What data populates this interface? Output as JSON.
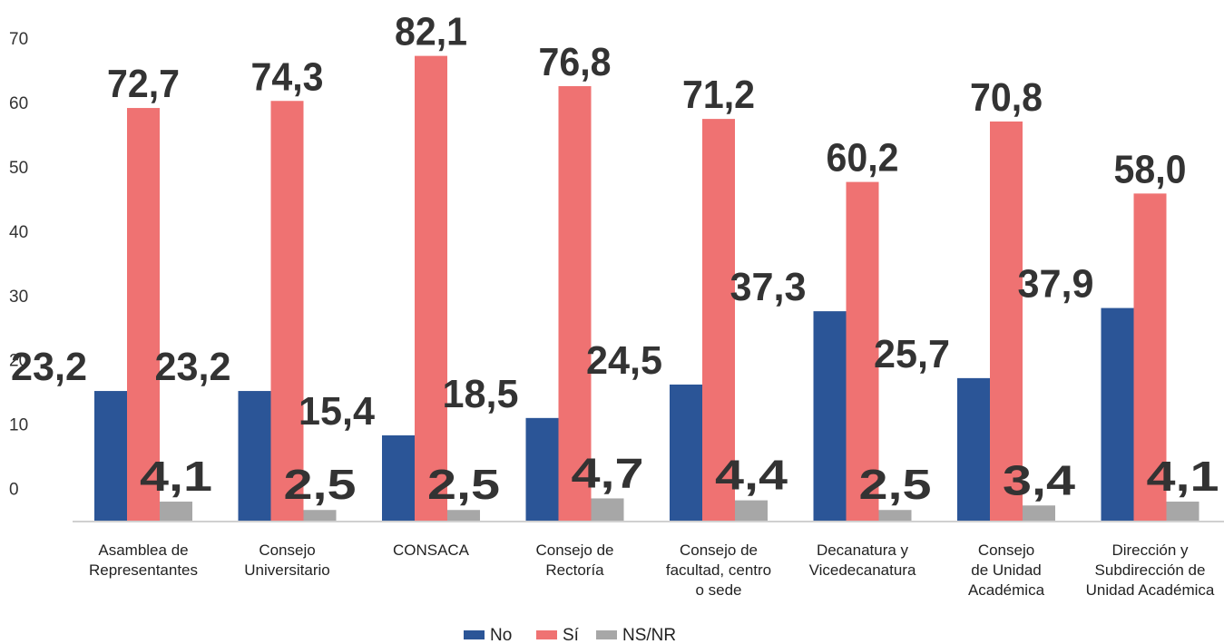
{
  "chart_data": {
    "type": "bar",
    "title": "",
    "xlabel": "",
    "ylabel": "",
    "ylim": [
      -5,
      72
    ],
    "yticks": [
      0,
      10,
      20,
      30,
      40,
      50,
      60,
      70
    ],
    "grid": false,
    "legend_position": "bottom-center",
    "categories": [
      [
        "Asamblea de",
        "Representantes"
      ],
      [
        "Consejo",
        "Universitario"
      ],
      [
        "CONSACA"
      ],
      [
        "Consejo de",
        "Rectoría"
      ],
      [
        "Consejo de",
        "facultad, centro",
        "o sede"
      ],
      [
        "Decanatura y",
        "Vicedecanatura"
      ],
      [
        "Consejo",
        "de Unidad",
        "Académica"
      ],
      [
        "Dirección y",
        "Subdirección de",
        "Unidad Académica"
      ]
    ],
    "series": [
      {
        "name": "No",
        "color": "#2b5597",
        "values": [
          15.3,
          15.3,
          8.4,
          11.1,
          16.3,
          27.7,
          17.3,
          28.2
        ],
        "labels": [
          "23,2",
          "23,2",
          "15,4",
          "18,5",
          "24,5",
          "37,3",
          "25,7",
          "37,9"
        ]
      },
      {
        "name": "Sí",
        "color": "#ef7272",
        "values": [
          59.3,
          60.4,
          67.4,
          62.7,
          57.6,
          47.8,
          57.2,
          46.0
        ],
        "labels": [
          "72,7",
          "74,3",
          "82,1",
          "76,8",
          "71,2",
          "60,2",
          "70,8",
          "58,0"
        ]
      },
      {
        "name": "NS/NR",
        "color": "#a7a7a7",
        "values": [
          -1.9,
          -3.2,
          -3.2,
          -1.4,
          -1.7,
          -3.2,
          -2.5,
          -1.9
        ],
        "labels": [
          "4,1",
          "2,5",
          "2,5",
          "4,7",
          "4,4",
          "2,5",
          "3,4",
          "4,1"
        ]
      }
    ]
  }
}
